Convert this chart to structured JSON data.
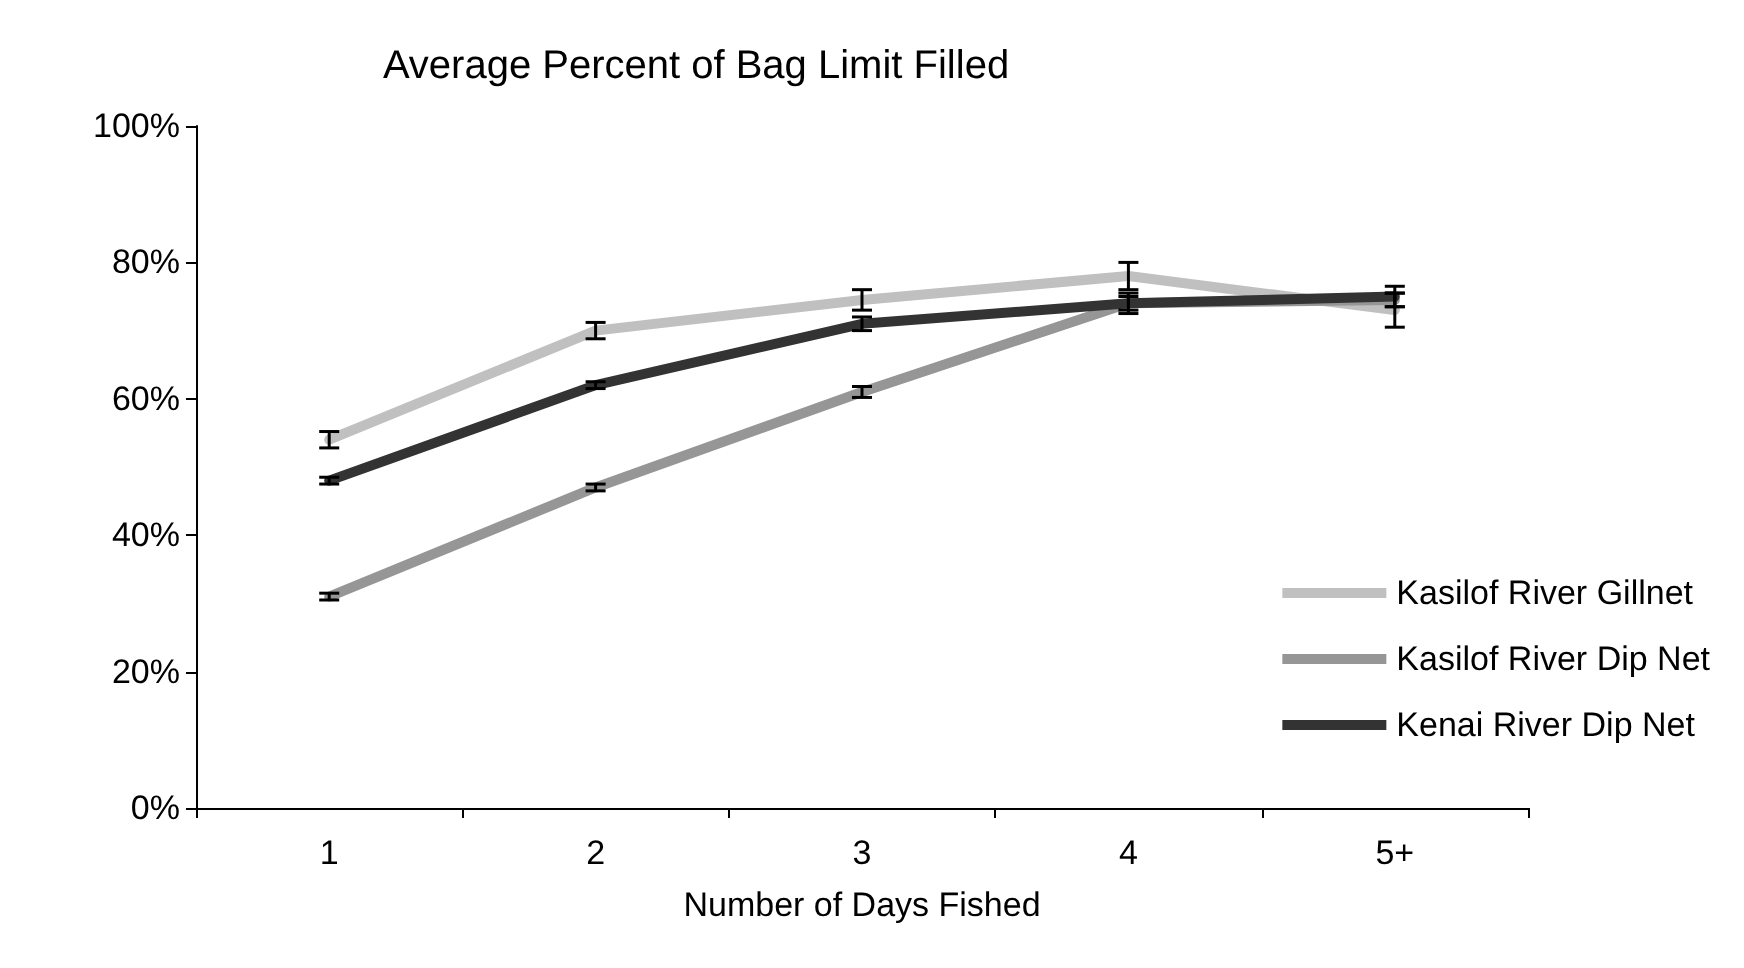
{
  "chart_data": {
    "type": "line",
    "title": "Average Percent of Bag Limit Filled",
    "xlabel": "Number of Days Fished",
    "categories": [
      "1",
      "2",
      "3",
      "4",
      "5+"
    ],
    "series": [
      {
        "name": "Kasilof River Gillnet",
        "color": "#c0c0c0",
        "values": [
          54,
          70,
          74.5,
          78,
          73
        ],
        "errors": [
          1.2,
          1.2,
          1.5,
          2,
          2.5
        ]
      },
      {
        "name": "Kasilof River Dip Net",
        "color": "#969696",
        "values": [
          31,
          47,
          61,
          74,
          74.5
        ],
        "errors": [
          0.5,
          0.5,
          0.8,
          1,
          1
        ]
      },
      {
        "name": "Kenai River Dip Net",
        "color": "#333333",
        "values": [
          48,
          62,
          71,
          74,
          75
        ],
        "errors": [
          0.5,
          0.5,
          1,
          1.5,
          1.5
        ]
      }
    ],
    "ylim": [
      0,
      100
    ],
    "yticks": [
      {
        "value": 0,
        "label": "0%"
      },
      {
        "value": 20,
        "label": "20%"
      },
      {
        "value": 40,
        "label": "40%"
      },
      {
        "value": 60,
        "label": "60%"
      },
      {
        "value": 80,
        "label": "80%"
      },
      {
        "value": 100,
        "label": "100%"
      }
    ],
    "grid": false,
    "legend": "bottom right",
    "marker": "none",
    "line_style": "solid"
  }
}
